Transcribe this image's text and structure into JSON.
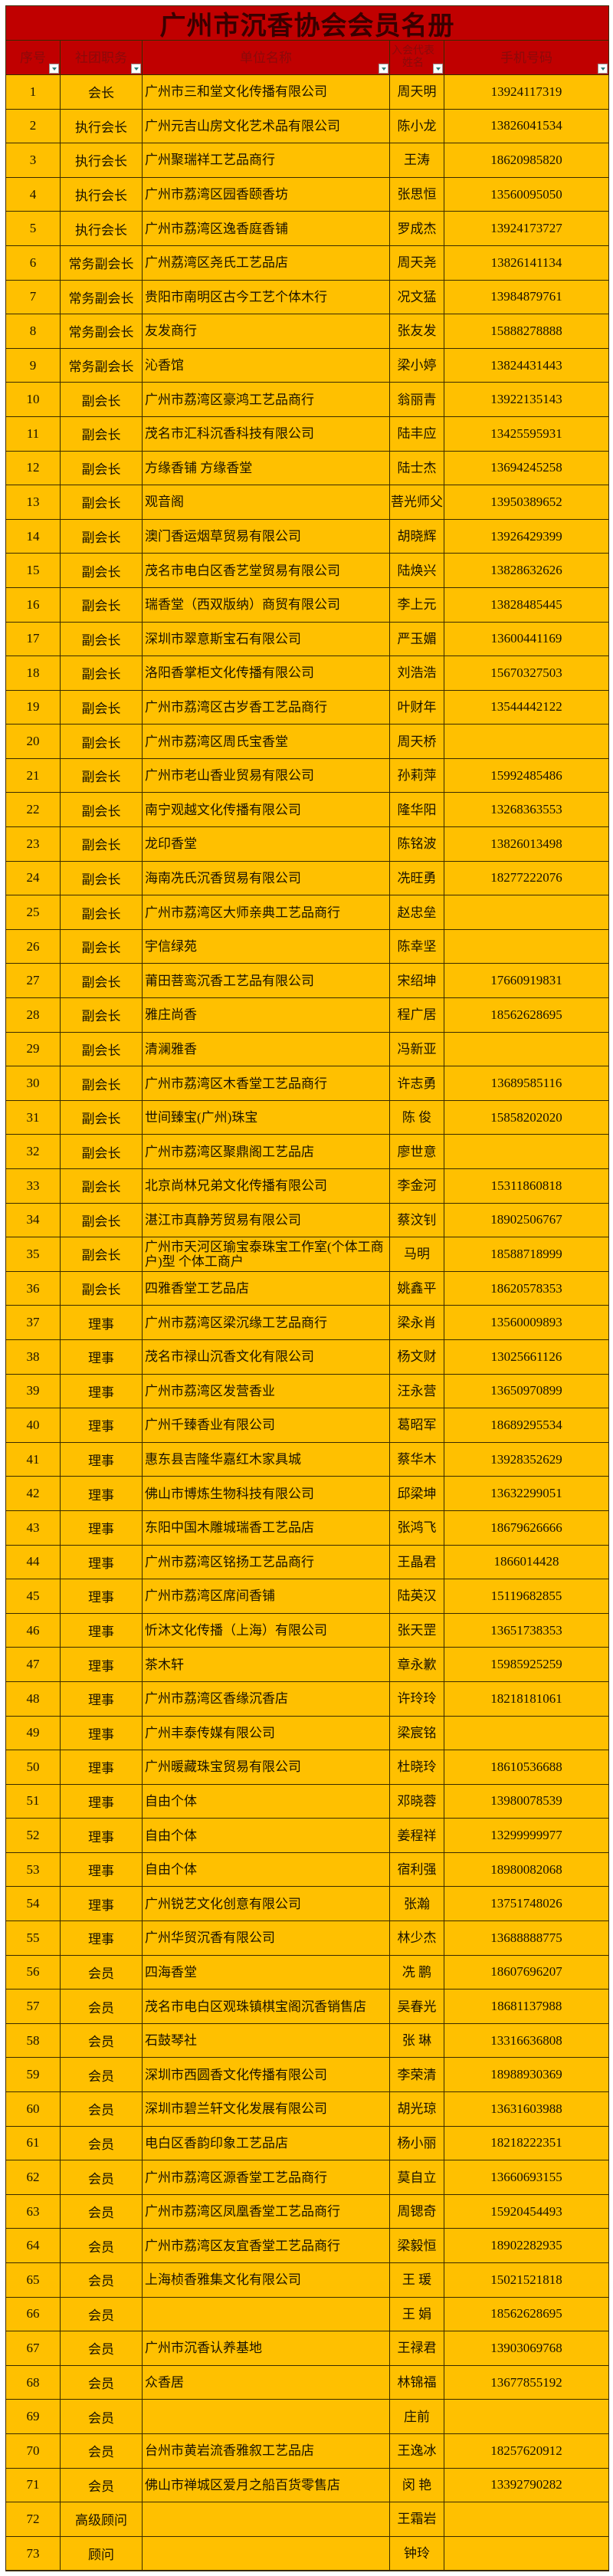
{
  "title": "广州市沉香协会会员名册",
  "colors": {
    "title_bg": "#C00000",
    "header_bg": "#C00000",
    "row_bg": "#FFC000",
    "header_text": "#8A0A0A"
  },
  "headers": {
    "no": "序号",
    "role": "社团职务",
    "unit": "单位名称",
    "name": "入会代表姓名",
    "phone": "手机号码"
  },
  "filter_icon": "filter-dropdown-icon",
  "rows": [
    {
      "no": "1",
      "role": "会长",
      "unit": "广州市三和堂文化传播有限公司",
      "name": "周天明",
      "phone": "13924117319"
    },
    {
      "no": "2",
      "role": "执行会长",
      "unit": "广州元吉山房文化艺术品有限公司",
      "name": "陈小龙",
      "phone": "13826041534"
    },
    {
      "no": "3",
      "role": "执行会长",
      "unit": "广州聚瑞祥工艺品商行",
      "name": "王涛",
      "phone": "18620985820"
    },
    {
      "no": "4",
      "role": "执行会长",
      "unit": "广州市荔湾区园香颐香坊",
      "name": "张思恒",
      "phone": "13560095050"
    },
    {
      "no": "5",
      "role": "执行会长",
      "unit": "广州市荔湾区逸香庭香铺",
      "name": "罗成杰",
      "phone": "13924173727"
    },
    {
      "no": "6",
      "role": "常务副会长",
      "unit": "广州荔湾区尧氏工艺品店",
      "name": "周天尧",
      "phone": "13826141134"
    },
    {
      "no": "7",
      "role": "常务副会长",
      "unit": "贵阳市南明区古今工艺个体木行",
      "name": "况文猛",
      "phone": "13984879761"
    },
    {
      "no": "8",
      "role": "常务副会长",
      "unit": "友发商行",
      "name": "张友发",
      "phone": "15888278888"
    },
    {
      "no": "9",
      "role": "常务副会长",
      "unit": "沁香馆",
      "name": "梁小婷",
      "phone": "13824431443"
    },
    {
      "no": "10",
      "role": "副会长",
      "unit": "广州市荔湾区豪鸿工艺品商行",
      "name": "翁丽青",
      "phone": "13922135143"
    },
    {
      "no": "11",
      "role": "副会长",
      "unit": "茂名市汇科沉香科技有限公司",
      "name": "陆丰应",
      "phone": "13425595931"
    },
    {
      "no": "12",
      "role": "副会长",
      "unit": "方缘香铺  方缘香堂",
      "name": "陆士杰",
      "phone": "13694245258"
    },
    {
      "no": "13",
      "role": "副会长",
      "unit": "观音阁",
      "name": "菩光师父",
      "phone": "13950389652"
    },
    {
      "no": "14",
      "role": "副会长",
      "unit": "澳门香运烟草贸易有限公司",
      "name": "胡晓辉",
      "phone": "13926429399"
    },
    {
      "no": "15",
      "role": "副会长",
      "unit": "茂名市电白区香艺堂贸易有限公司",
      "name": "陆焕兴",
      "phone": "13828632626"
    },
    {
      "no": "16",
      "role": "副会长",
      "unit": "瑞香堂（西双版纳）商贸有限公司",
      "name": "李上元",
      "phone": "13828485445"
    },
    {
      "no": "17",
      "role": "副会长",
      "unit": "深圳市翠意斯宝石有限公司",
      "name": "严玉媚",
      "phone": "13600441169"
    },
    {
      "no": "18",
      "role": "副会长",
      "unit": "洛阳香掌柜文化传播有限公司",
      "name": "刘浩浩",
      "phone": "15670327503"
    },
    {
      "no": "19",
      "role": "副会长",
      "unit": "广州市荔湾区古岁香工艺品商行",
      "name": "叶财年",
      "phone": "13544442122"
    },
    {
      "no": "20",
      "role": "副会长",
      "unit": "广州市荔湾区周氏宝香堂",
      "name": "周天桥",
      "phone": ""
    },
    {
      "no": "21",
      "role": "副会长",
      "unit": "广州市老山香业贸易有限公司",
      "name": "孙莉萍",
      "phone": "15992485486"
    },
    {
      "no": "22",
      "role": "副会长",
      "unit": "南宁观越文化传播有限公司",
      "name": "隆华阳",
      "phone": "13268363553"
    },
    {
      "no": "23",
      "role": "副会长",
      "unit": "龙印香堂",
      "name": "陈铭波",
      "phone": "13826013498"
    },
    {
      "no": "24",
      "role": "副会长",
      "unit": "海南冼氏沉香贸易有限公司",
      "name": "冼旺勇",
      "phone": "18277222076"
    },
    {
      "no": "25",
      "role": "副会长",
      "unit": "广州市荔湾区大师亲典工艺品商行",
      "name": "赵忠垒",
      "phone": ""
    },
    {
      "no": "26",
      "role": "副会长",
      "unit": "宇信绿苑",
      "name": "陈幸坚",
      "phone": ""
    },
    {
      "no": "27",
      "role": "副会长",
      "unit": "莆田菩鸾沉香工艺品有限公司",
      "name": "宋绍坤",
      "phone": "17660919831"
    },
    {
      "no": "28",
      "role": "副会长",
      "unit": "雅庄尚香",
      "name": "程广居",
      "phone": "18562628695"
    },
    {
      "no": "29",
      "role": "副会长",
      "unit": "清澜雅香",
      "name": "冯新亚",
      "phone": ""
    },
    {
      "no": "30",
      "role": "副会长",
      "unit": "广州市荔湾区木香堂工艺品商行",
      "name": "许志勇",
      "phone": "13689585116"
    },
    {
      "no": "31",
      "role": "副会长",
      "unit": "世间臻宝(广州)珠宝",
      "name": "陈 俊",
      "phone": "15858202020"
    },
    {
      "no": "32",
      "role": "副会长",
      "unit": "广州市荔湾区聚鼎阁工艺品店",
      "name": "廖世意",
      "phone": ""
    },
    {
      "no": "33",
      "role": "副会长",
      "unit": "北京尚林兄弟文化传播有限公司",
      "name": "李金河",
      "phone": "15311860818"
    },
    {
      "no": "34",
      "role": "副会长",
      "unit": "湛江市真静芳贸易有限公司",
      "name": "蔡汶钊",
      "phone": "18902506767"
    },
    {
      "no": "35",
      "role": "副会长",
      "unit": "广州市天河区瑜宝泰珠宝工作室(个体工商户)型 个体工商户",
      "name": "马明",
      "phone": "18588718999"
    },
    {
      "no": "36",
      "role": "副会长",
      "unit": "四雅香堂工艺品店",
      "name": "姚鑫平",
      "phone": "18620578353"
    },
    {
      "no": "37",
      "role": "理事",
      "unit": "广州市荔湾区梁沉缘工艺品商行",
      "name": "梁永肖",
      "phone": "13560009893"
    },
    {
      "no": "38",
      "role": "理事",
      "unit": "茂名市禄山沉香文化有限公司",
      "name": "杨文财",
      "phone": "13025661126"
    },
    {
      "no": "39",
      "role": "理事",
      "unit": "广州市荔湾区发营香业",
      "name": "汪永营",
      "phone": "13650970899"
    },
    {
      "no": "40",
      "role": "理事",
      "unit": "广州千臻香业有限公司",
      "name": "葛昭军",
      "phone": "18689295534"
    },
    {
      "no": "41",
      "role": "理事",
      "unit": "惠东县吉隆华嘉红木家具城",
      "name": "蔡华木",
      "phone": "13928352629"
    },
    {
      "no": "42",
      "role": "理事",
      "unit": "佛山市博炼生物科技有限公司",
      "name": "邱梁坤",
      "phone": "13632299051"
    },
    {
      "no": "43",
      "role": "理事",
      "unit": "东阳中国木雕城瑞香工艺品店",
      "name": "张鸿飞",
      "phone": "18679626666"
    },
    {
      "no": "44",
      "role": "理事",
      "unit": "广州市荔湾区铭扬工艺品商行",
      "name": "王晶君",
      "phone": "1866014428"
    },
    {
      "no": "45",
      "role": "理事",
      "unit": "广州市荔湾区席间香铺",
      "name": "陆英汉",
      "phone": "15119682855"
    },
    {
      "no": "46",
      "role": "理事",
      "unit": "忻沐文化传播（上海）有限公司",
      "name": "张天罡",
      "phone": "13651738353"
    },
    {
      "no": "47",
      "role": "理事",
      "unit": "茶木轩",
      "name": "章永歉",
      "phone": "15985925259"
    },
    {
      "no": "48",
      "role": "理事",
      "unit": "广州市荔湾区香缘沉香店",
      "name": "许玲玲",
      "phone": "18218181061"
    },
    {
      "no": "49",
      "role": "理事",
      "unit": "广州丰泰传媒有限公司",
      "name": "梁宸铭",
      "phone": ""
    },
    {
      "no": "50",
      "role": "理事",
      "unit": "广州暖藏珠宝贸易有限公司",
      "name": "杜晓玲",
      "phone": "18610536688"
    },
    {
      "no": "51",
      "role": "理事",
      "unit": "自由个体",
      "name": "邓晓蓉",
      "phone": "13980078539"
    },
    {
      "no": "52",
      "role": "理事",
      "unit": "自由个体",
      "name": "姜程祥",
      "phone": "13299999977"
    },
    {
      "no": "53",
      "role": "理事",
      "unit": "自由个体",
      "name": "宿利强",
      "phone": "18980082068"
    },
    {
      "no": "54",
      "role": "理事",
      "unit": "广州锐艺文化创意有限公司",
      "name": "张瀚",
      "phone": "13751748026"
    },
    {
      "no": "55",
      "role": "理事",
      "unit": "广州华贸沉香有限公司",
      "name": "林少杰",
      "phone": "13688888775"
    },
    {
      "no": "56",
      "role": "会员",
      "unit": "四海香堂",
      "name": "冼 鹏",
      "phone": "18607696207"
    },
    {
      "no": "57",
      "role": "会员",
      "unit": "茂名市电白区观珠镇棋宝阁沉香销售店",
      "name": "吴春光",
      "phone": "18681137988"
    },
    {
      "no": "58",
      "role": "会员",
      "unit": "石鼓琴社",
      "name": "张 琳",
      "phone": "13316636808"
    },
    {
      "no": "59",
      "role": "会员",
      "unit": "深圳市西圆香文化传播有限公司",
      "name": "李荣清",
      "phone": "18988930369"
    },
    {
      "no": "60",
      "role": "会员",
      "unit": "深圳市碧兰轩文化发展有限公司",
      "name": "胡光琼",
      "phone": "13631603988"
    },
    {
      "no": "61",
      "role": "会员",
      "unit": "电白区香韵印象工艺品店",
      "name": "杨小丽",
      "phone": "18218222351"
    },
    {
      "no": "62",
      "role": "会员",
      "unit": "广州市荔湾区源香堂工艺品商行",
      "name": "莫自立",
      "phone": "13660693155"
    },
    {
      "no": "63",
      "role": "会员",
      "unit": "广州市荔湾区凤凰香堂工艺品商行",
      "name": "周锶奇",
      "phone": "15920454493"
    },
    {
      "no": "64",
      "role": "会员",
      "unit": "广州市荔湾区友宜香堂工艺品商行",
      "name": "梁毅恒",
      "phone": "18902282935"
    },
    {
      "no": "65",
      "role": "会员",
      "unit": "上海桢香雅集文化有限公司",
      "name": "王 瑗",
      "phone": "15021521818"
    },
    {
      "no": "66",
      "role": "会员",
      "unit": "",
      "name": "王 娟",
      "phone": "18562628695"
    },
    {
      "no": "67",
      "role": "会员",
      "unit": "广州市沉香认养基地",
      "name": "王禄君",
      "phone": "13903069768"
    },
    {
      "no": "68",
      "role": "会员",
      "unit": "众香居",
      "name": "林锦福",
      "phone": "13677855192"
    },
    {
      "no": "69",
      "role": "会员",
      "unit": "",
      "name": "庄前",
      "phone": ""
    },
    {
      "no": "70",
      "role": "会员",
      "unit": "台州市黄岩流香雅叙工艺品店",
      "name": "王逸冰",
      "phone": "18257620912"
    },
    {
      "no": "71",
      "role": "会员",
      "unit": "佛山市禅城区爱月之船百货零售店",
      "name": "闵 艳",
      "phone": "13392790282"
    },
    {
      "no": "72",
      "role": "高级顾问",
      "unit": "",
      "name": "王霜岩",
      "phone": ""
    },
    {
      "no": "73",
      "role": "顾问",
      "unit": "",
      "name": "钟玲",
      "phone": ""
    }
  ]
}
